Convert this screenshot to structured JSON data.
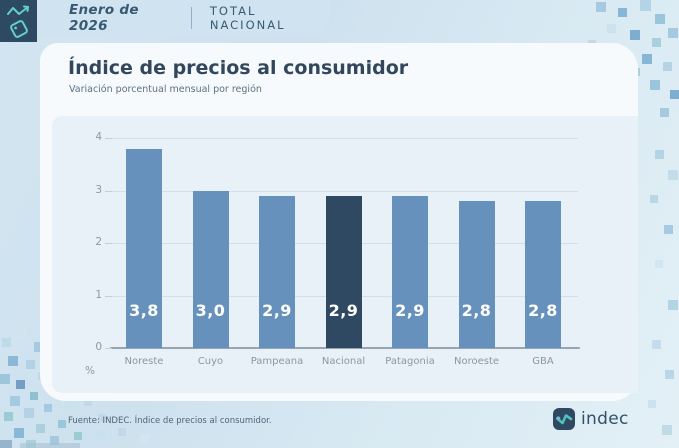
{
  "header": {
    "period": "Enero de 2026",
    "scope": "TOTAL NACIONAL"
  },
  "title": "Índice de precios al consumidor",
  "subtitle": "Variación porcentual mensual por región",
  "chart_data": {
    "type": "bar",
    "title": "Índice de precios al consumidor",
    "subtitle": "Variación porcentual mensual por región",
    "categories": [
      "Noreste",
      "Cuyo",
      "Pampeana",
      "Nacional",
      "Patagonia",
      "Noroeste",
      "GBA"
    ],
    "values": [
      3.8,
      3.0,
      2.9,
      2.9,
      2.9,
      2.8,
      2.8
    ],
    "value_labels": [
      "3,8",
      "3,0",
      "2,9",
      "2,9",
      "2,9",
      "2,8",
      "2,8"
    ],
    "highlight_index": 3,
    "highlight_category": "Nacional",
    "ylim": [
      0,
      4
    ],
    "yticks": [
      0,
      1,
      2,
      3,
      4
    ],
    "ylabel": "%",
    "grid": true,
    "legend": false,
    "bar_color": "#6591bc",
    "highlight_color": "#2f4962"
  },
  "footer": {
    "source": "Fuente: INDEC. Índice de precios al consumidor.",
    "brand": "indec"
  },
  "colors": {
    "accent_teal": "#64d0c6",
    "navy": "#2e4a63",
    "pill": "#cfe4f0"
  }
}
